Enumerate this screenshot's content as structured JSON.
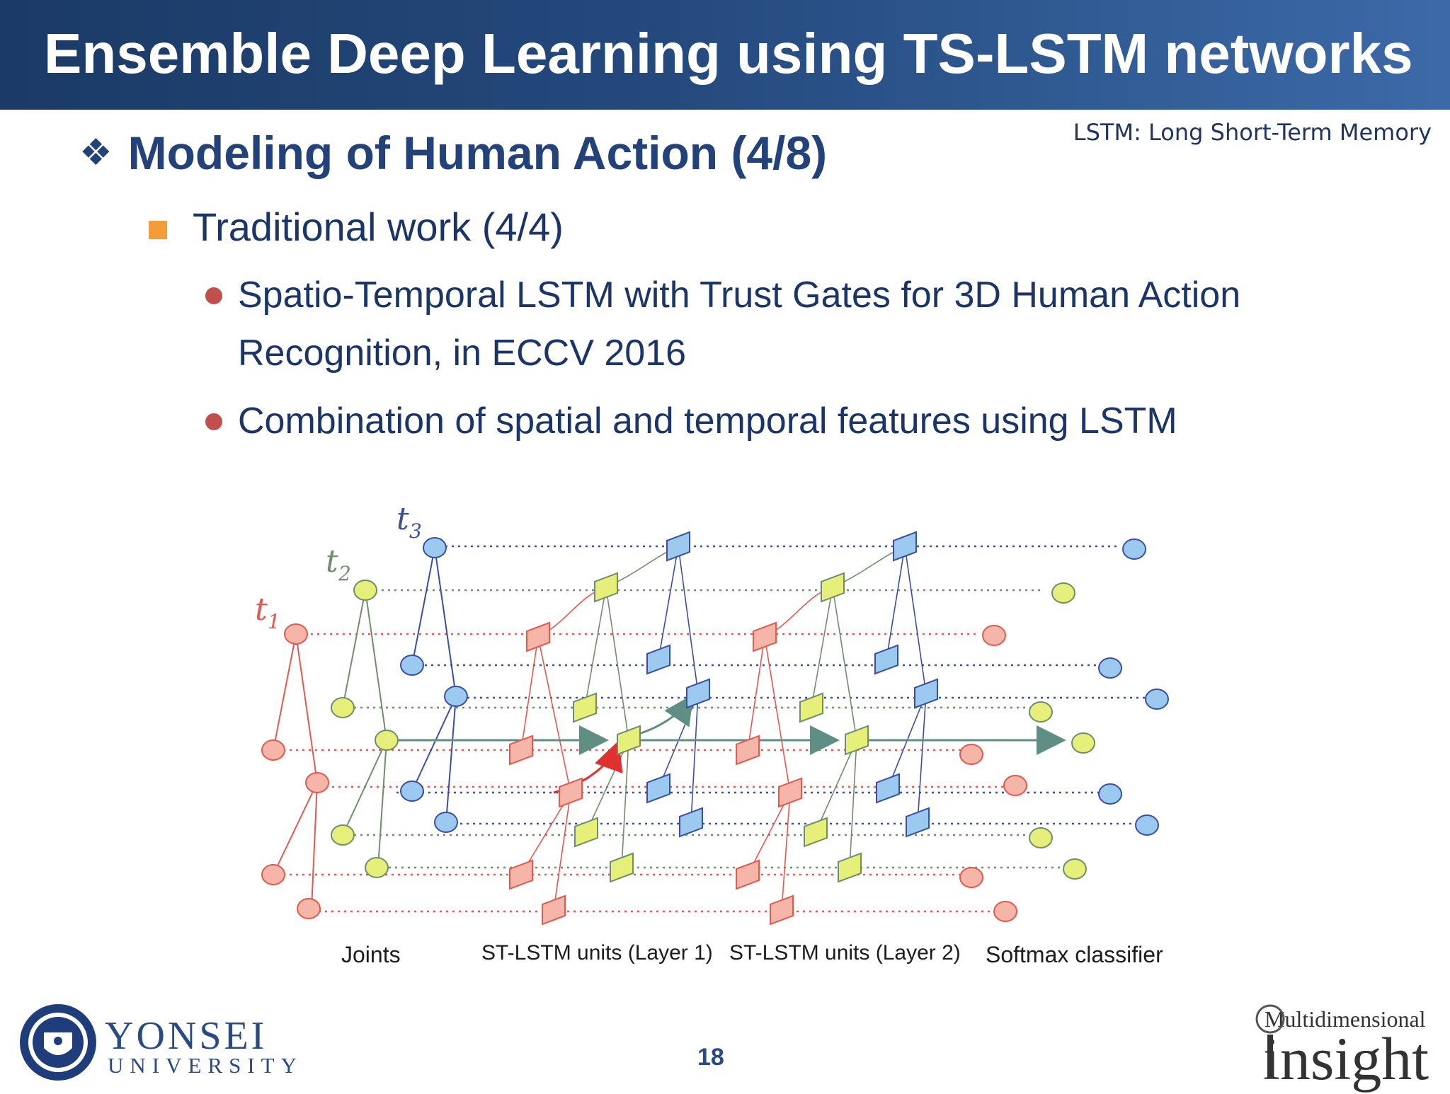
{
  "slide": {
    "title": "Ensemble Deep Learning using TS-LSTM networks",
    "note": "LSTM: Long Short-Term Memory",
    "level1_bullet": "❖",
    "level1": "Modeling of Human Action (4/8)",
    "level2": "Traditional work (4/4)",
    "level3": [
      "Spatio-Temporal LSTM with Trust Gates for 3D Human Action Recognition, in ECCV 2016",
      "Combination of spatial and temporal features using LSTM"
    ],
    "page_number": "18"
  },
  "figure": {
    "time_labels": {
      "t1": "t1",
      "t2": "t2",
      "t3": "t3"
    },
    "captions": {
      "joints": "Joints",
      "layer1": "ST-LSTM units (Layer 1)",
      "layer2": "ST-LSTM units (Layer 2)",
      "softmax": "Softmax classifier"
    },
    "colors": {
      "t1_red": "#e05a50",
      "t2_olive": "#6f8f6a",
      "t3_blue": "#3a4fa0",
      "joint_red_fill": "#f5b5a8",
      "joint_yellow_fill": "#e6ef7a",
      "joint_blue_fill": "#9cc9f0",
      "arrow": "#5f8f84"
    }
  },
  "footer": {
    "university_name": "YONSEI",
    "university_sub": "UNIVERSITY",
    "lab_line1": "Multidimensional",
    "lab_line2": "insight"
  }
}
